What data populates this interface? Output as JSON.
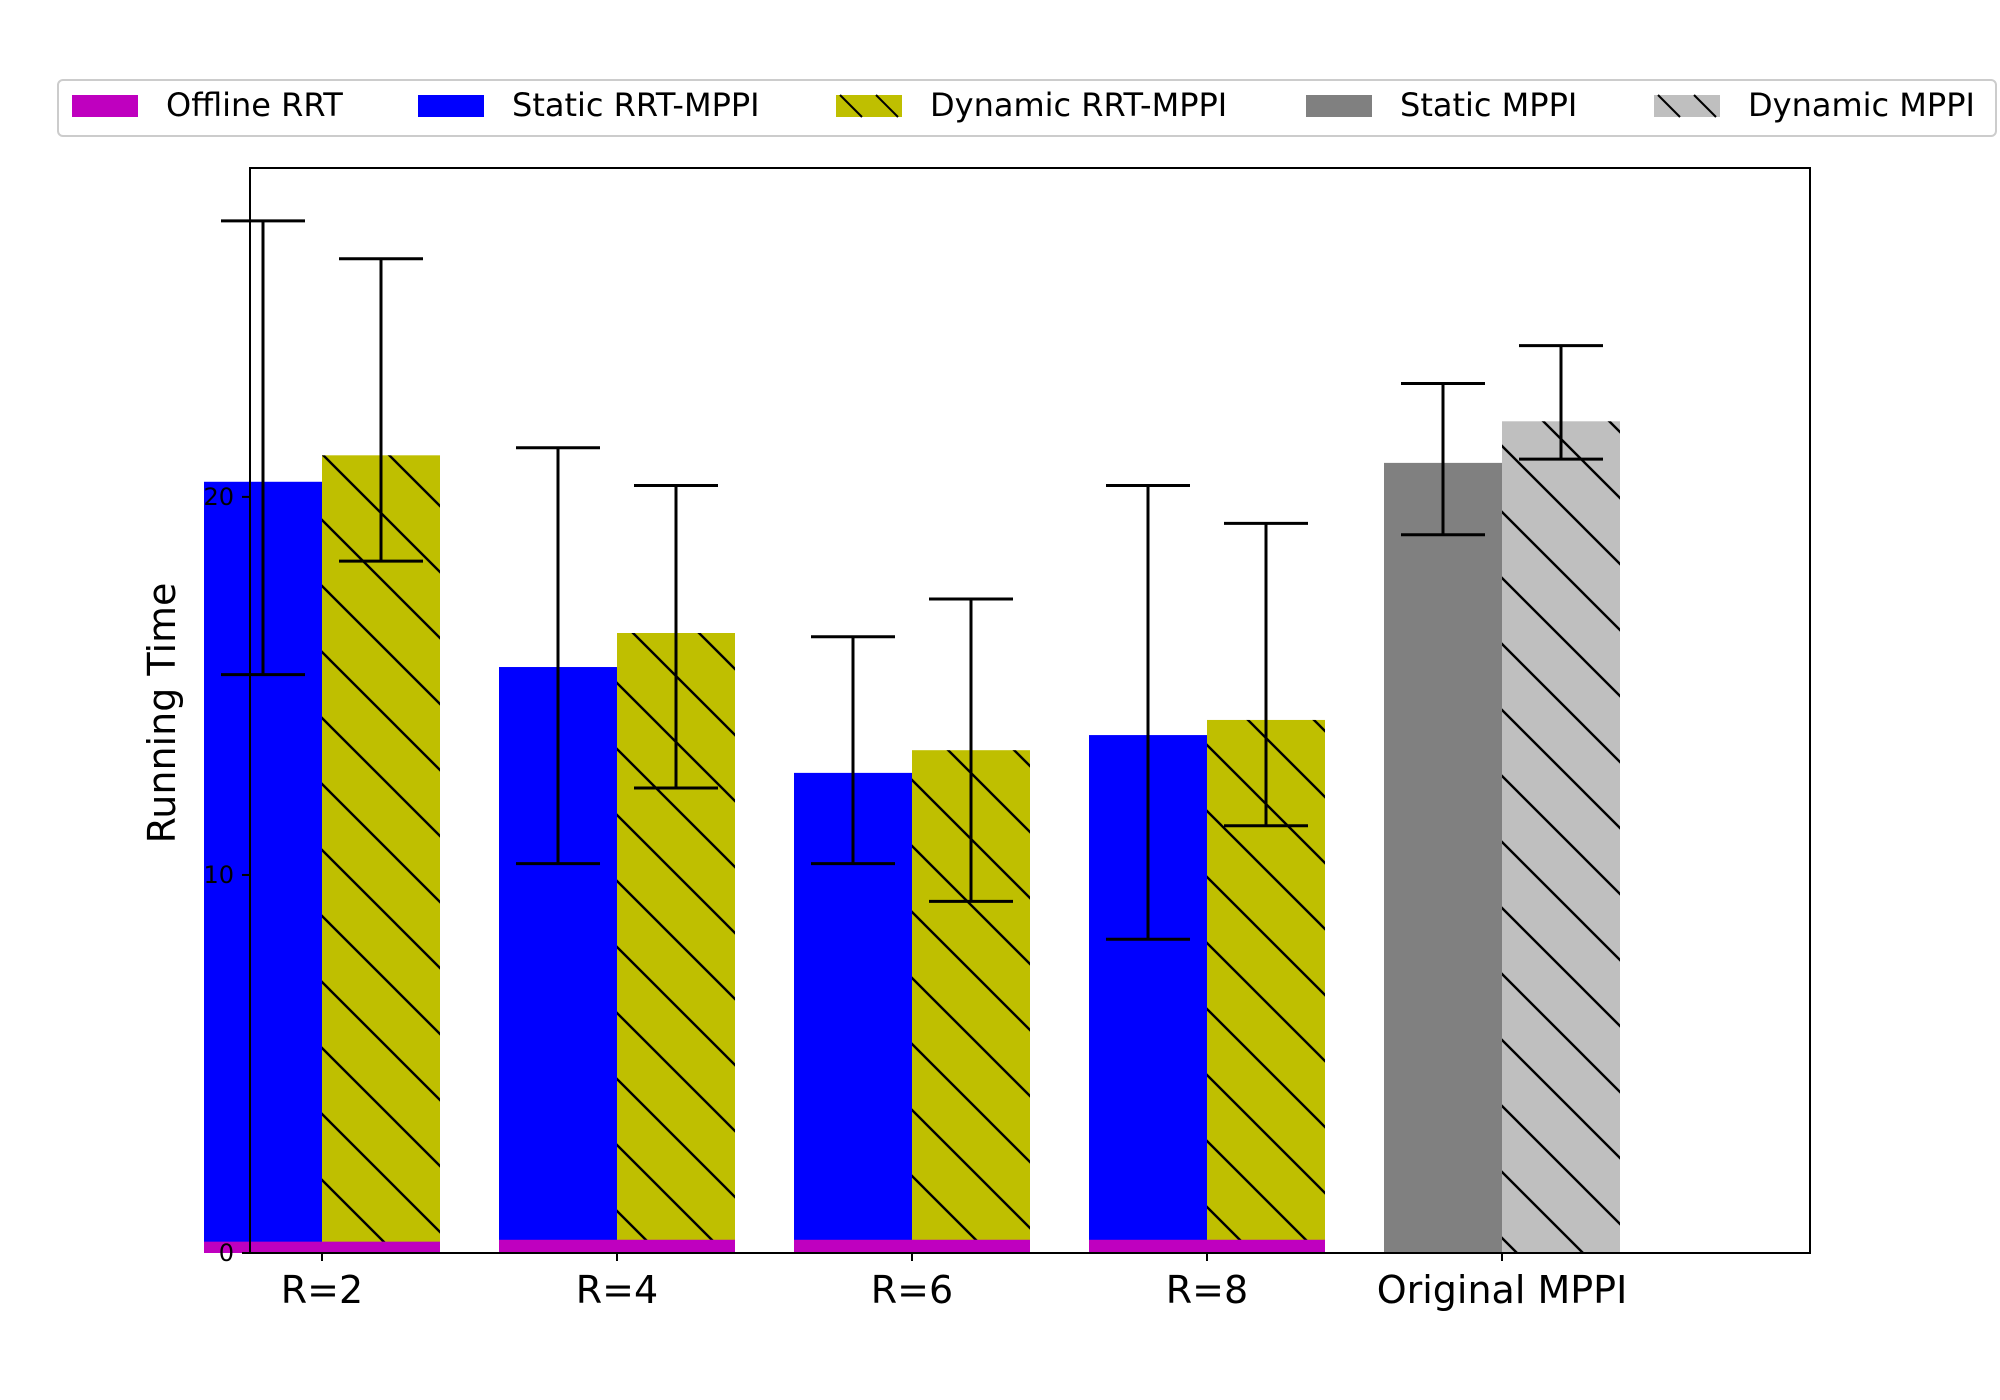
{
  "chart_data": {
    "type": "bar",
    "ylabel": "Running Time",
    "xlabel": "",
    "ylim": [
      0,
      28.7
    ],
    "yticks": [
      0,
      10,
      20
    ],
    "categories": [
      "R=2",
      "R=4",
      "R=6",
      "R=8",
      "Original MPPI"
    ],
    "series": [
      {
        "name": "Offline RRT",
        "color": "#bf00bf",
        "hatch": false,
        "values": [
          0.3,
          0.35,
          0.35,
          0.35,
          null
        ]
      },
      {
        "name": "Static RRT-MPPI",
        "color": "#0000ff",
        "hatch": false,
        "values": [
          20.4,
          15.5,
          12.7,
          13.7,
          null
        ],
        "err_low": [
          15.3,
          10.3,
          10.3,
          8.3,
          null
        ],
        "err_high": [
          27.3,
          21.3,
          16.3,
          20.3,
          null
        ]
      },
      {
        "name": "Dynamic RRT-MPPI",
        "color": "#bfbf00",
        "hatch": true,
        "values": [
          21.1,
          16.4,
          13.3,
          14.1,
          null
        ],
        "err_low": [
          18.3,
          12.3,
          9.3,
          11.3,
          null
        ],
        "err_high": [
          26.3,
          20.3,
          17.3,
          19.3,
          null
        ]
      },
      {
        "name": "Static MPPI",
        "color": "#808080",
        "hatch": false,
        "values": [
          null,
          null,
          null,
          null,
          20.9
        ],
        "err_low": [
          null,
          null,
          null,
          null,
          19.0
        ],
        "err_high": [
          null,
          null,
          null,
          null,
          23.0
        ]
      },
      {
        "name": "Dynamic MPPI",
        "color": "#bfbfbf",
        "hatch": true,
        "values": [
          null,
          null,
          null,
          null,
          22.0
        ],
        "err_low": [
          null,
          null,
          null,
          null,
          21.0
        ],
        "err_high": [
          null,
          null,
          null,
          null,
          24.0
        ]
      }
    ],
    "legend": {
      "placement": "top",
      "ncol": 5
    }
  }
}
